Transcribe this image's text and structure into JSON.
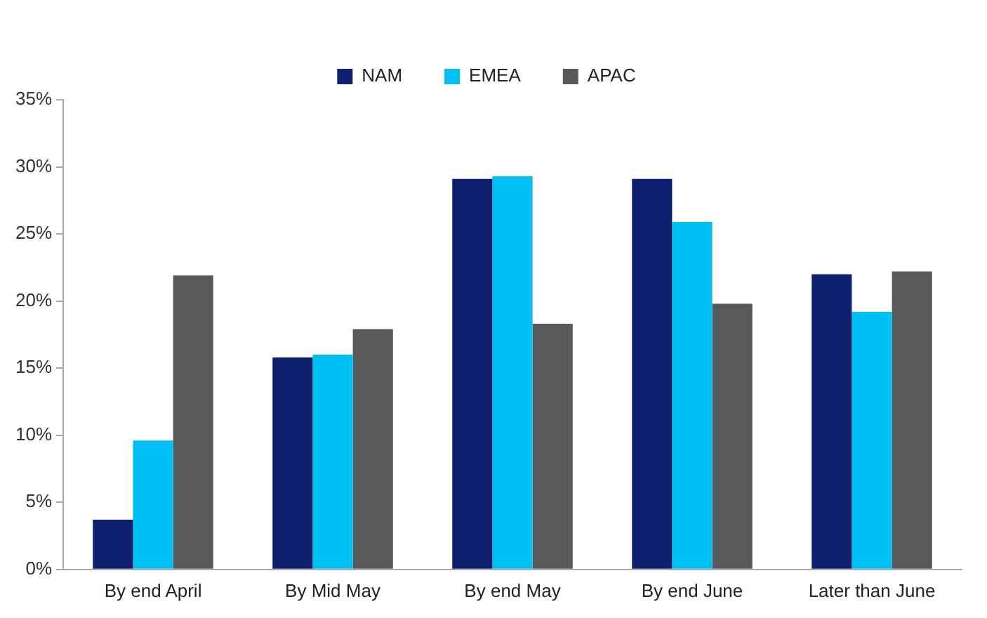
{
  "chart_data": {
    "type": "bar",
    "categories": [
      "By end April",
      "By Mid May",
      "By end May",
      "By end June",
      "Later than June"
    ],
    "series": [
      {
        "name": "NAM",
        "color": "#0d1f6d",
        "values": [
          3.7,
          15.8,
          29.1,
          29.1,
          22.0
        ]
      },
      {
        "name": "EMEA",
        "color": "#00bff2",
        "values": [
          9.6,
          16.0,
          29.3,
          25.9,
          19.2
        ]
      },
      {
        "name": "APAC",
        "color": "#58595b",
        "values": [
          21.9,
          17.9,
          18.3,
          19.8,
          22.2
        ]
      }
    ],
    "ylim": [
      0,
      35
    ],
    "yticks": [
      {
        "value": 0,
        "label": "0%"
      },
      {
        "value": 5,
        "label": "5%"
      },
      {
        "value": 10,
        "label": "10%"
      },
      {
        "value": 15,
        "label": "15%"
      },
      {
        "value": 20,
        "label": "20%"
      },
      {
        "value": 25,
        "label": "25%"
      },
      {
        "value": 30,
        "label": "30%"
      },
      {
        "value": 35,
        "label": "35%"
      }
    ],
    "grid": false,
    "legend": "top"
  }
}
